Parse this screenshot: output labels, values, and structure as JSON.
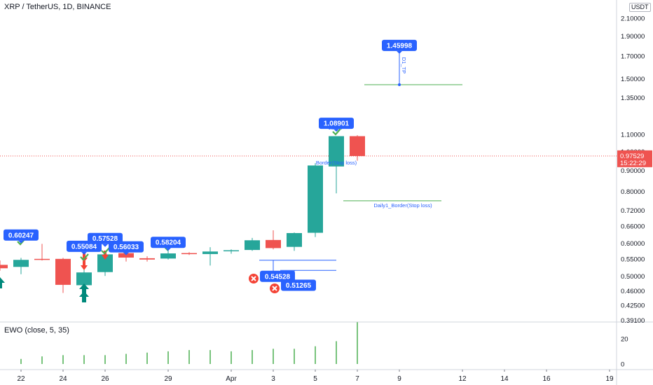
{
  "header": {
    "title": "XRP / TetherUS, 1D, BINANCE",
    "currency": "USDT"
  },
  "indicator": {
    "label": "EWO (close, 5, 35)",
    "axis_ticks": [
      "20",
      "0"
    ]
  },
  "current_price": {
    "price": "0.97529",
    "countdown": "15:22:29"
  },
  "colors": {
    "up": "#26a69a",
    "down": "#ef5350",
    "label_bg": "#2962ff",
    "hline": "#4caf50",
    "ewo_bar": "#4caf50",
    "price_tag": "#ef5350"
  },
  "chart_data": {
    "type": "candlestick",
    "y_scale": "log",
    "y_ticks": [
      "0.39100",
      "0.42500",
      "0.46000",
      "0.50000",
      "0.55000",
      "0.60000",
      "0.66000",
      "0.72000",
      "0.80000",
      "0.90000",
      "1.00000",
      "1.10000",
      "1.35000",
      "1.50000",
      "1.70000",
      "1.90000",
      "2.10000"
    ],
    "x_ticks": [
      {
        "label": "22",
        "day": 0
      },
      {
        "label": "24",
        "day": 2
      },
      {
        "label": "26",
        "day": 4
      },
      {
        "label": "29",
        "day": 7
      },
      {
        "label": "Apr",
        "day": 10
      },
      {
        "label": "3",
        "day": 12
      },
      {
        "label": "5",
        "day": 14
      },
      {
        "label": "7",
        "day": 16
      },
      {
        "label": "9",
        "day": 18
      },
      {
        "label": "12",
        "day": 21
      },
      {
        "label": "14",
        "day": 23
      },
      {
        "label": "16",
        "day": 25
      },
      {
        "label": "19",
        "day": 28
      }
    ],
    "candles": [
      {
        "day": -1,
        "open": 0.532,
        "high": 0.545,
        "low": 0.515,
        "close": 0.522
      },
      {
        "day": 0,
        "open": 0.526,
        "high": 0.553,
        "low": 0.505,
        "close": 0.547
      },
      {
        "day": 1,
        "open": 0.55,
        "high": 0.598,
        "low": 0.545,
        "close": 0.547
      },
      {
        "day": 2,
        "open": 0.55,
        "high": 0.553,
        "low": 0.455,
        "close": 0.476
      },
      {
        "day": 3,
        "open": 0.475,
        "high": 0.541,
        "low": 0.46,
        "close": 0.51
      },
      {
        "day": 4,
        "open": 0.511,
        "high": 0.575,
        "low": 0.5,
        "close": 0.564
      },
      {
        "day": 5,
        "open": 0.568,
        "high": 0.583,
        "low": 0.542,
        "close": 0.554
      },
      {
        "day": 6,
        "open": 0.552,
        "high": 0.558,
        "low": 0.542,
        "close": 0.548
      },
      {
        "day": 7,
        "open": 0.551,
        "high": 0.582,
        "low": 0.548,
        "close": 0.567
      },
      {
        "day": 8,
        "open": 0.568,
        "high": 0.571,
        "low": 0.562,
        "close": 0.566
      },
      {
        "day": 9,
        "open": 0.565,
        "high": 0.587,
        "low": 0.53,
        "close": 0.573
      },
      {
        "day": 10,
        "open": 0.574,
        "high": 0.58,
        "low": 0.566,
        "close": 0.577
      },
      {
        "day": 11,
        "open": 0.578,
        "high": 0.618,
        "low": 0.575,
        "close": 0.61
      },
      {
        "day": 12,
        "open": 0.611,
        "high": 0.645,
        "low": 0.58,
        "close": 0.584
      },
      {
        "day": 13,
        "open": 0.588,
        "high": 0.637,
        "low": 0.575,
        "close": 0.635
      },
      {
        "day": 14,
        "open": 0.636,
        "high": 0.937,
        "low": 0.621,
        "close": 0.925
      },
      {
        "day": 15,
        "open": 0.92,
        "high": 1.089,
        "low": 0.792,
        "close": 1.089
      },
      {
        "day": 16,
        "open": 1.089,
        "high": 1.095,
        "low": 0.95,
        "close": 0.975
      }
    ],
    "ewo": [
      {
        "day": 0,
        "value": 4
      },
      {
        "day": 1,
        "value": 6
      },
      {
        "day": 2,
        "value": 7
      },
      {
        "day": 3,
        "value": 7
      },
      {
        "day": 4,
        "value": 7
      },
      {
        "day": 5,
        "value": 8
      },
      {
        "day": 6,
        "value": 9
      },
      {
        "day": 7,
        "value": 10
      },
      {
        "day": 8,
        "value": 11
      },
      {
        "day": 9,
        "value": 11
      },
      {
        "day": 10,
        "value": 10
      },
      {
        "day": 11,
        "value": 11
      },
      {
        "day": 12,
        "value": 12
      },
      {
        "day": 13,
        "value": 12
      },
      {
        "day": 14,
        "value": 14
      },
      {
        "day": 15,
        "value": 18
      },
      {
        "day": 16,
        "value": 33
      }
    ],
    "price_labels": [
      {
        "text": "0.60247",
        "day": 0,
        "price": 0.628,
        "kind": "label",
        "pointer": true
      },
      {
        "text": "0.55084",
        "day": 3,
        "price": 0.59,
        "kind": "label",
        "pointer": true
      },
      {
        "text": "0.57528",
        "day": 4,
        "price": 0.616,
        "kind": "label",
        "pointer": true
      },
      {
        "text": "0.56033",
        "day": 5,
        "price": 0.588,
        "kind": "label",
        "pointer": true
      },
      {
        "text": "0.58204",
        "day": 7,
        "price": 0.603,
        "kind": "label",
        "pointer": true
      },
      {
        "text": "0.54528",
        "day": 12,
        "price": 0.499,
        "kind": "label",
        "pointer": false
      },
      {
        "text": "0.51265",
        "day": 13,
        "price": 0.475,
        "kind": "label",
        "pointer": false
      },
      {
        "text": "1.08901",
        "day": 15,
        "price": 1.17,
        "kind": "label",
        "pointer": true
      },
      {
        "text": "1.45998",
        "day": 18,
        "price": 1.805,
        "kind": "label",
        "pointer": true
      }
    ],
    "lines": [
      {
        "label": "D1_TP",
        "price": 1.45,
        "from_day": 17,
        "to_day": 22,
        "vertical_label": true
      },
      {
        "label": "Daily1_Border(Stop loss)",
        "price": 0.76,
        "from_day": 16,
        "to_day": 21
      },
      {
        "label": "",
        "price": 0.546,
        "from_day": 12,
        "to_day": 15
      },
      {
        "label": "",
        "price": 0.516,
        "from_day": 13,
        "to_day": 15
      }
    ],
    "annotations": [
      {
        "text": "Border(Stop loss)",
        "day": 15,
        "price": 0.93
      },
      {
        "text": "1D_TP",
        "day": 15,
        "price": 1.13
      }
    ]
  }
}
